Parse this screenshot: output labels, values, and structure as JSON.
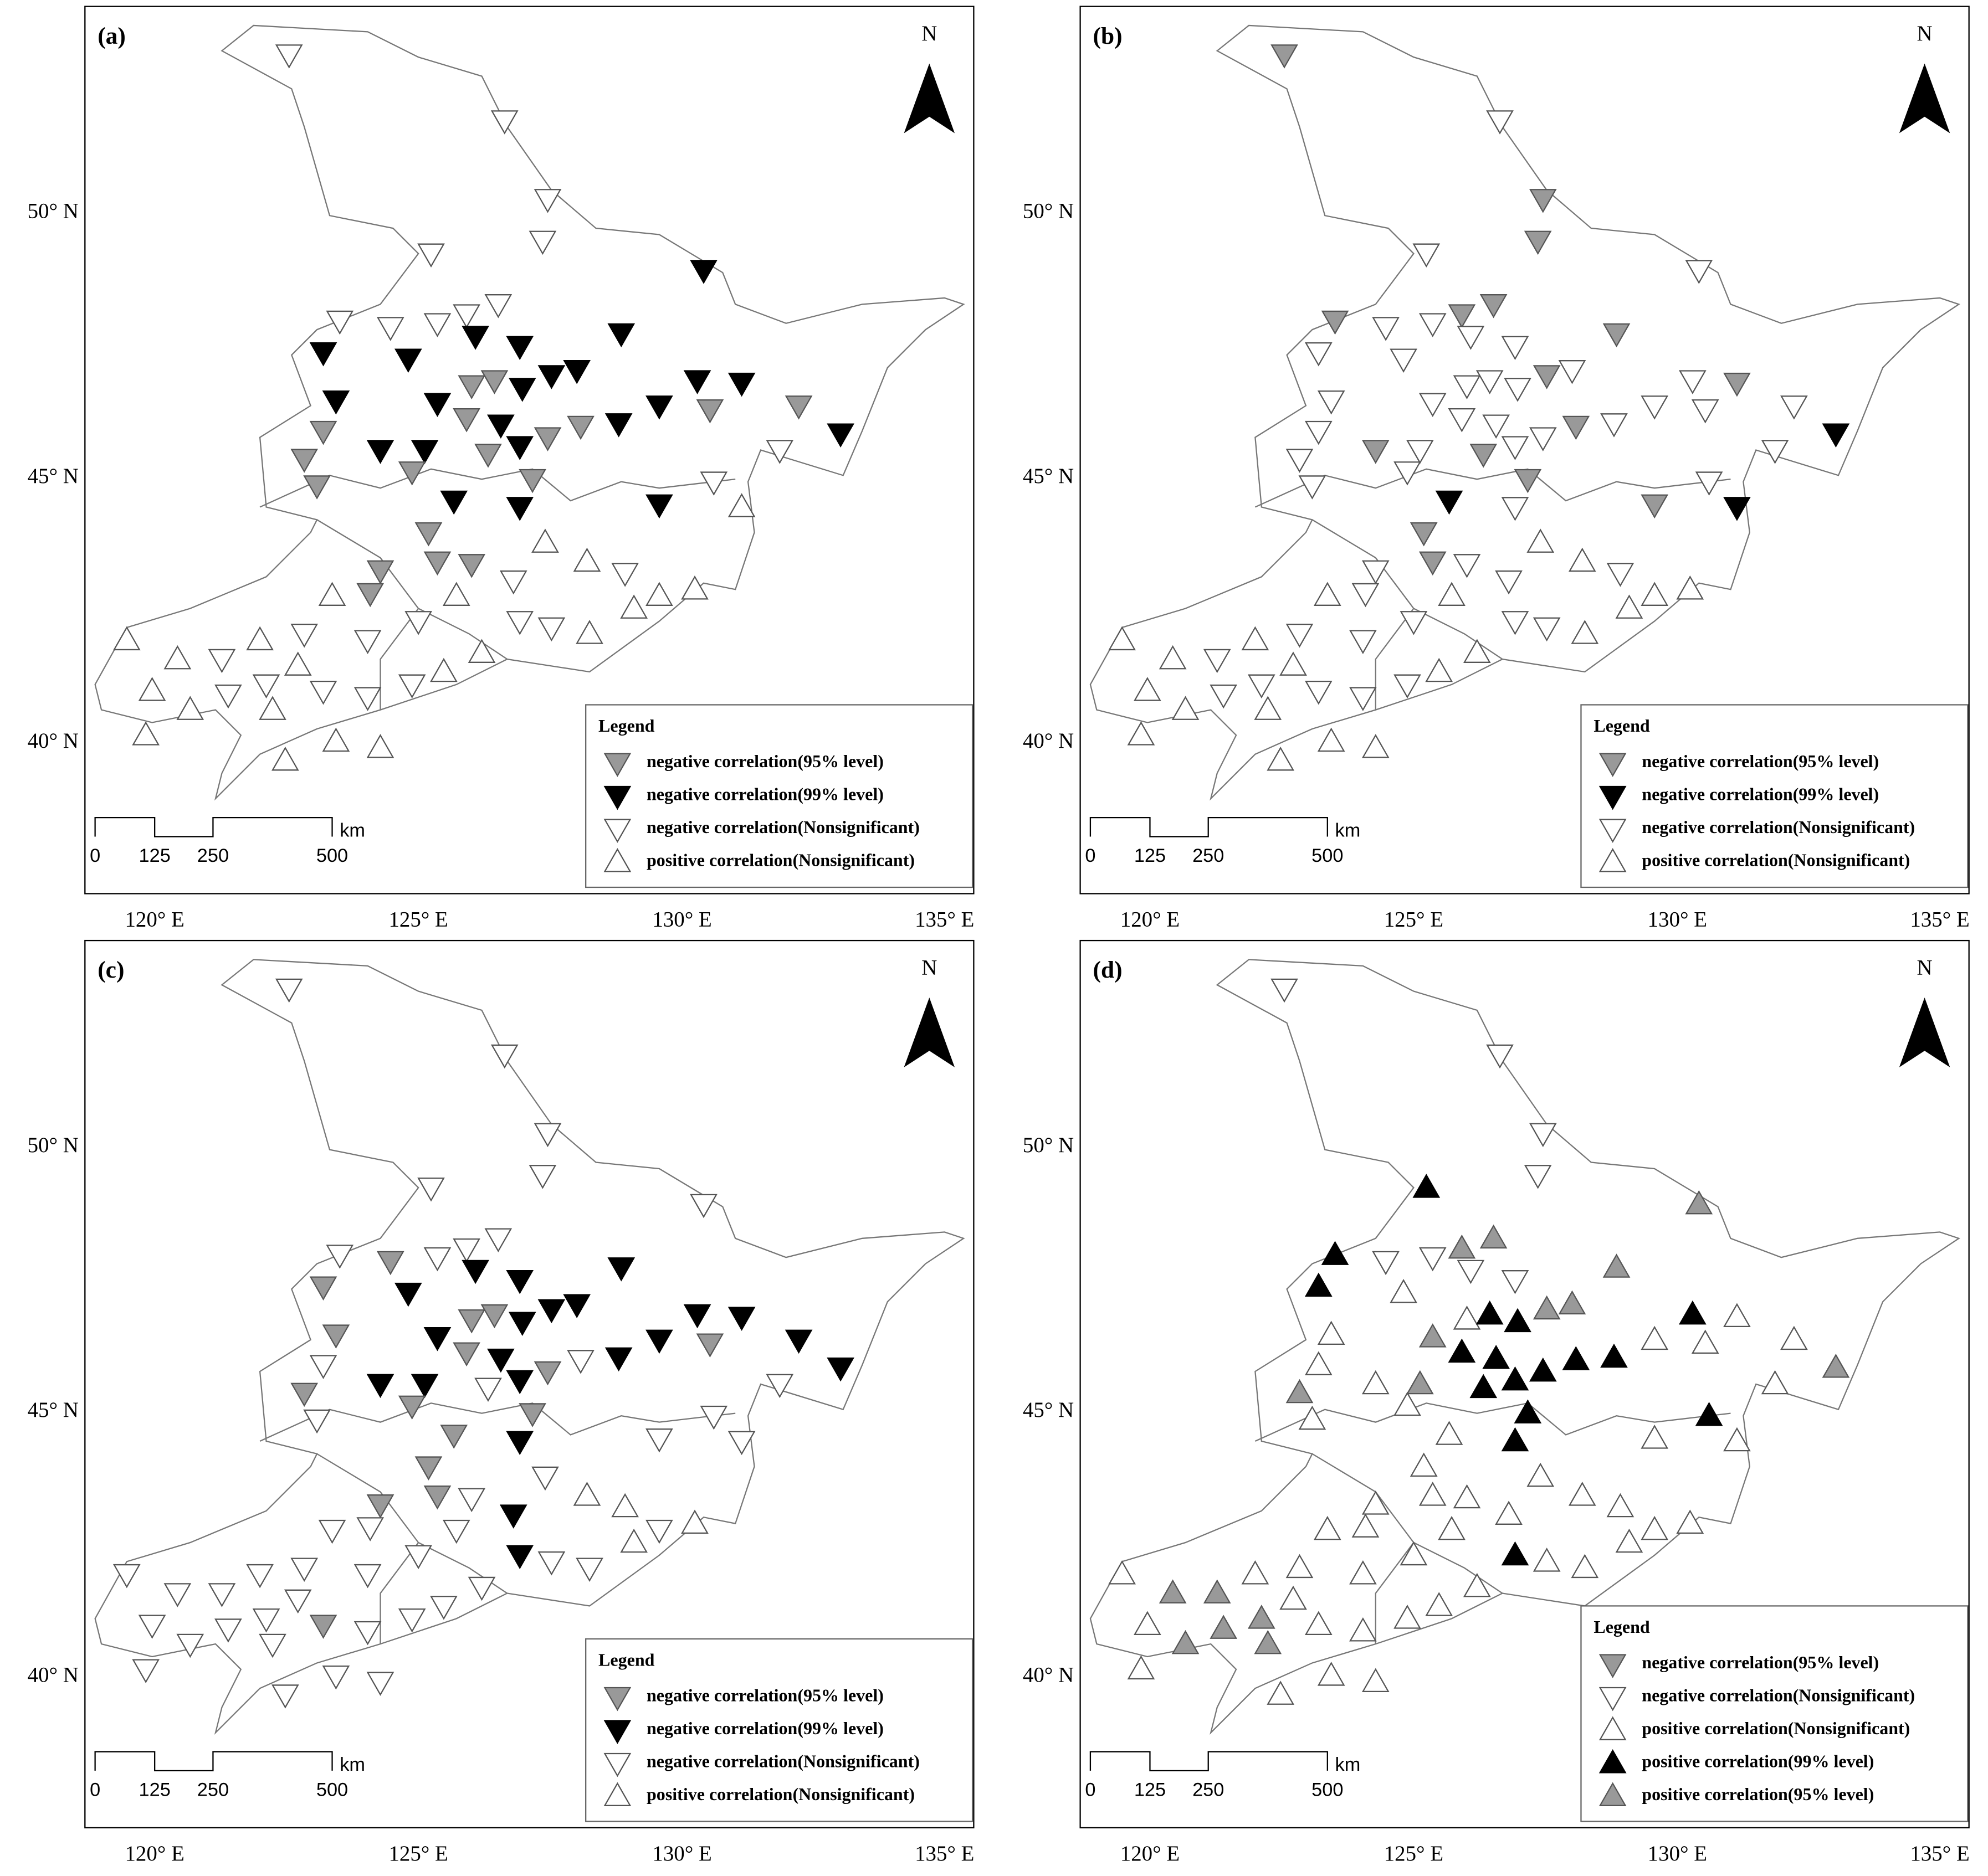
{
  "map": {
    "north": "N",
    "lat_labels": [
      "50° N",
      "45° N",
      "40° N"
    ],
    "lon_labels": [
      "120° E",
      "125° E",
      "130° E",
      "135° E"
    ],
    "scale_labels": [
      "0",
      "125",
      "250",
      "500",
      "km"
    ],
    "legend_title": "Legend",
    "panels": [
      {
        "label": "(a)",
        "legend": [
          {
            "text": "negative correlation(95% level)",
            "shape": "down",
            "color": "#999999"
          },
          {
            "text": "negative correlation(99% level)",
            "shape": "down",
            "color": "#000000"
          },
          {
            "text": "negative correlation(Nonsignificant)",
            "shape": "down",
            "color": "#ffffff"
          },
          {
            "text": "positive correlation(Nonsignificant)",
            "shape": "up",
            "color": "#ffffff"
          }
        ]
      },
      {
        "label": "(b)",
        "legend": [
          {
            "text": "negative correlation(95% level)",
            "shape": "down",
            "color": "#999999"
          },
          {
            "text": "negative correlation(99% level)",
            "shape": "down",
            "color": "#000000"
          },
          {
            "text": "negative correlation(Nonsignificant)",
            "shape": "down",
            "color": "#ffffff"
          },
          {
            "text": "positive correlation(Nonsignificant)",
            "shape": "up",
            "color": "#ffffff"
          }
        ]
      },
      {
        "label": "(c)",
        "legend": [
          {
            "text": "negative correlation(95% level)",
            "shape": "down",
            "color": "#999999"
          },
          {
            "text": "negative correlation(99% level)",
            "shape": "down",
            "color": "#000000"
          },
          {
            "text": "negative correlation(Nonsignificant)",
            "shape": "down",
            "color": "#ffffff"
          },
          {
            "text": "positive correlation(Nonsignificant)",
            "shape": "up",
            "color": "#ffffff"
          }
        ]
      },
      {
        "label": "(d)",
        "legend": [
          {
            "text": "negative correlation(95% level)",
            "shape": "down",
            "color": "#999999"
          },
          {
            "text": "negative correlation(Nonsignificant)",
            "shape": "down",
            "color": "#ffffff"
          },
          {
            "text": "positive correlation(Nonsignificant)",
            "shape": "up",
            "color": "#ffffff"
          },
          {
            "text": "positive correlation(99% level)",
            "shape": "up",
            "color": "#000000"
          },
          {
            "text": "positive correlation(95% level)",
            "shape": "up",
            "color": "#999999"
          }
        ]
      }
    ]
  }
}
